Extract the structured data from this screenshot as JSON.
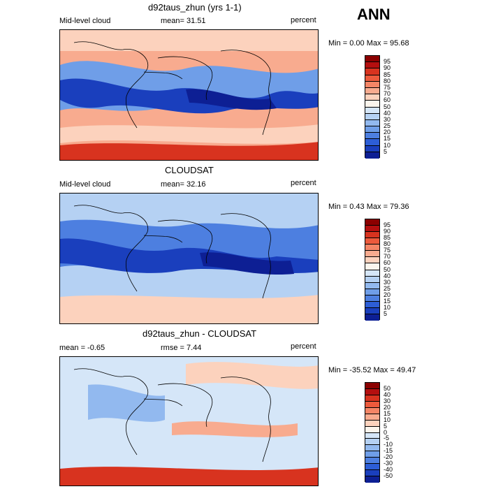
{
  "season": "ANN",
  "panels": [
    {
      "title": "d92taus_zhun (yrs 1-1)",
      "left_label": "Mid-level cloud",
      "stat_text": "mean=  31.51",
      "units": "percent",
      "minmax": "Min =    0.00 Max =   95.68",
      "colorbar_labels": [
        "95",
        "90",
        "85",
        "80",
        "75",
        "70",
        "60",
        "50",
        "40",
        "30",
        "25",
        "20",
        "15",
        "10",
        "5"
      ],
      "colors": [
        "#8b0000",
        "#b40f0f",
        "#d8331f",
        "#ec5a3c",
        "#f48566",
        "#f8ab8f",
        "#fcd2bd",
        "#fbf5ed",
        "#d5e6f8",
        "#b5d1f3",
        "#92b9ef",
        "#6f9ee8",
        "#4d7fe0",
        "#2d5ed6",
        "#1a3fbd",
        "#0d1f94"
      ]
    },
    {
      "title": "CLOUDSAT",
      "left_label": "Mid-level cloud",
      "stat_text": "mean=  32.16",
      "units": "percent",
      "minmax": "Min =    0.43 Max =   79.36",
      "colorbar_labels": [
        "95",
        "90",
        "85",
        "80",
        "75",
        "70",
        "60",
        "50",
        "40",
        "30",
        "25",
        "20",
        "15",
        "10",
        "5"
      ],
      "colors": [
        "#8b0000",
        "#b40f0f",
        "#d8331f",
        "#ec5a3c",
        "#f48566",
        "#f8ab8f",
        "#fcd2bd",
        "#fbf5ed",
        "#d5e6f8",
        "#b5d1f3",
        "#92b9ef",
        "#6f9ee8",
        "#4d7fe0",
        "#2d5ed6",
        "#1a3fbd",
        "#0d1f94"
      ]
    },
    {
      "title": "d92taus_zhun - CLOUDSAT",
      "left_label": "mean =   -0.65",
      "stat_text": "rmse =   7.44",
      "units": "percent",
      "minmax": "Min = -35.52 Max =  49.47",
      "colorbar_labels": [
        "50",
        "40",
        "30",
        "20",
        "15",
        "10",
        "5",
        "0",
        "-5",
        "-10",
        "-15",
        "-20",
        "-30",
        "-40",
        "-50"
      ],
      "colors": [
        "#8b0000",
        "#b40f0f",
        "#d8331f",
        "#ec5a3c",
        "#f48566",
        "#f8ab8f",
        "#fcd2bd",
        "#fbf5ed",
        "#d5e6f8",
        "#b5d1f3",
        "#92b9ef",
        "#6f9ee8",
        "#4d7fe0",
        "#2d5ed6",
        "#1a3fbd",
        "#0d1f94"
      ]
    }
  ],
  "chart_data": [
    {
      "type": "heatmap",
      "title": "d92taus_zhun (yrs 1-1)",
      "variable": "Mid-level cloud",
      "units": "percent",
      "mean": 31.51,
      "min": 0.0,
      "max": 95.68,
      "levels": [
        5,
        10,
        15,
        20,
        25,
        30,
        40,
        50,
        60,
        70,
        75,
        80,
        85,
        90,
        95
      ]
    },
    {
      "type": "heatmap",
      "title": "CLOUDSAT",
      "variable": "Mid-level cloud",
      "units": "percent",
      "mean": 32.16,
      "min": 0.43,
      "max": 79.36,
      "levels": [
        5,
        10,
        15,
        20,
        25,
        30,
        40,
        50,
        60,
        70,
        75,
        80,
        85,
        90,
        95
      ]
    },
    {
      "type": "heatmap",
      "title": "d92taus_zhun - CLOUDSAT",
      "units": "percent",
      "mean": -0.65,
      "rmse": 7.44,
      "min": -35.52,
      "max": 49.47,
      "levels": [
        -50,
        -40,
        -30,
        -20,
        -15,
        -10,
        -5,
        0,
        5,
        10,
        15,
        20,
        30,
        40,
        50
      ]
    }
  ]
}
